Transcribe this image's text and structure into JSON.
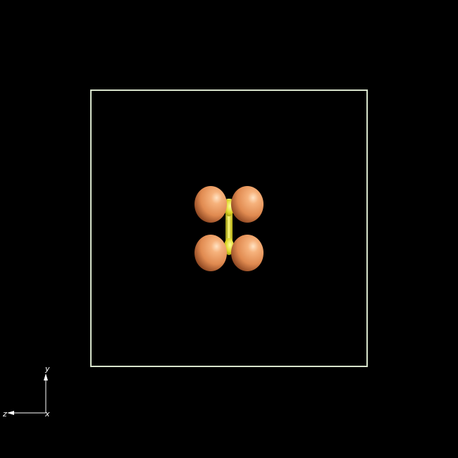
{
  "viewer": {
    "background": "#000000",
    "cell_box_color": "#d8e4cc",
    "lobe_color": "#e8935a",
    "lobe_highlight": "#ffd2a6",
    "lobe_shadow": "#a0522a",
    "bond_color": "#e6e02a",
    "bond_highlight": "#ffff99",
    "axis_color": "#ffffff"
  },
  "axes": {
    "y_label": "y",
    "z_label": "z",
    "x_label": "x"
  }
}
